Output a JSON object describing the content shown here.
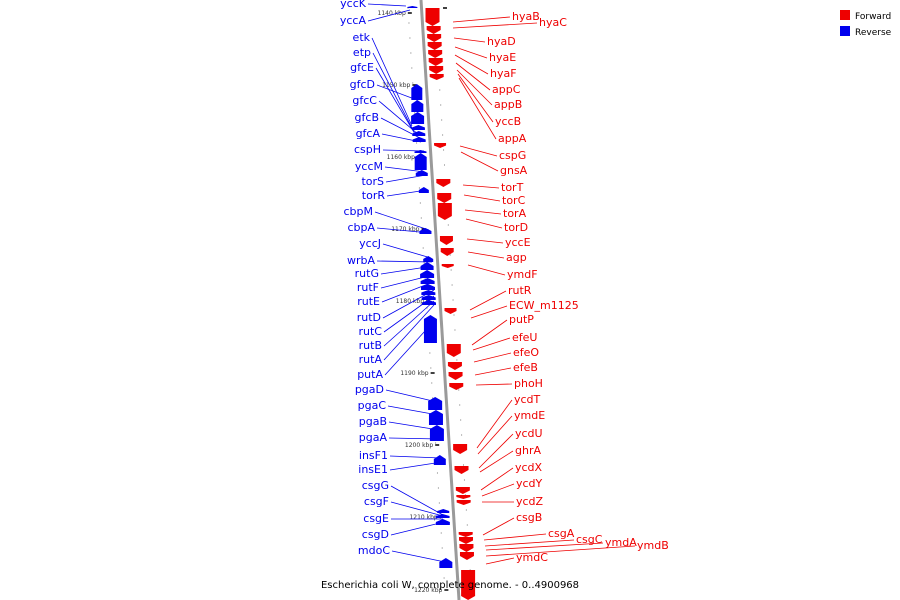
{
  "caption": "Escherichia coli W, complete genome. - 0..4900968",
  "colors": {
    "forward": "#ee0000",
    "reverse": "#0000ee",
    "axis": "#888888"
  },
  "legend": [
    {
      "label": "Forward",
      "color": "#ee0000"
    },
    {
      "label": "Reverse",
      "color": "#0000ee"
    }
  ],
  "ticks": [
    "1140 kbp",
    "1150 kbp",
    "1160 kbp",
    "1170 kbp",
    "1180 kbp",
    "1190 kbp",
    "1200 kbp",
    "1210 kbp",
    "1220 kbp"
  ],
  "reverse_genes": [
    "yccK",
    "yccA",
    "etk",
    "etp",
    "gfcE",
    "gfcD",
    "gfcC",
    "gfcB",
    "gfcA",
    "cspH",
    "yccM",
    "torS",
    "torR",
    "cbpM",
    "cbpA",
    "yccJ",
    "wrbA",
    "rutG",
    "rutF",
    "rutE",
    "rutD",
    "rutC",
    "rutB",
    "rutA",
    "putA",
    "pgaD",
    "pgaC",
    "pgaB",
    "pgaA",
    "insF1",
    "insE1",
    "csgG",
    "csgF",
    "csgE",
    "csgD",
    "mdoC"
  ],
  "forward_genes": [
    "hyaB",
    "hyaC",
    "hyaD",
    "hyaE",
    "hyaF",
    "appC",
    "appB",
    "yccB",
    "appA",
    "cspG",
    "gnsA",
    "torT",
    "torC",
    "torA",
    "torD",
    "yccE",
    "agp",
    "ymdF",
    "rutR",
    "ECW_m1125",
    "putP",
    "efeU",
    "efeO",
    "efeB",
    "phoH",
    "ycdT",
    "ymdE",
    "ycdU",
    "ghrA",
    "ycdX",
    "ycdY",
    "ycdZ",
    "csgB",
    "csgA",
    "csgC",
    "ymdA",
    "ymdB",
    "ymdC"
  ]
}
